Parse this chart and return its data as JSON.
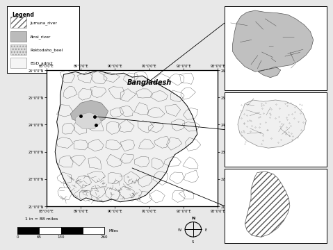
{
  "title": "Bangladesh",
  "legend_title": "Legend",
  "legend_items": [
    {
      "label": "Jumuna_river",
      "hatch": "////",
      "facecolor": "#ffffff",
      "edgecolor": "#666666"
    },
    {
      "label": "Atrai_river",
      "hatch": "",
      "facecolor": "#bbbbbb",
      "edgecolor": "#666666"
    },
    {
      "label": "Roktodaho_beel",
      "hatch": "....",
      "facecolor": "#dddddd",
      "edgecolor": "#999999"
    },
    {
      "label": "BGD_adm2",
      "hatch": "",
      "facecolor": "#f5f5f5",
      "edgecolor": "#888888"
    }
  ],
  "scale_text": "1 in = 88 miles",
  "scale_labels": [
    "0",
    "65",
    "130",
    "",
    "260 Miles"
  ],
  "compass_labels": [
    "N",
    "S",
    "E",
    "W"
  ],
  "bg_color": "#e8e8e8",
  "main_map_bg": "#ffffff",
  "x_ticks_top": [
    "88°0'0\"E",
    "89°0'0\"E",
    "90°0'0\"E",
    "91°0'0\"E",
    "92°0'0\"E",
    "93°0'0\"E"
  ],
  "x_ticks_bot": [
    "88°0'0\"E",
    "89°0'0\"E",
    "90°0'0\"E",
    "91°0'0\"E",
    "92°0'0\"E",
    "93°0'0\"E"
  ],
  "y_ticks_left": [
    "26°0'0\"N",
    "25°0'0\"N",
    "24°0'0\"N",
    "23°0'0\"N",
    "22°0'0\"N",
    "21°0'0\"N"
  ],
  "y_ticks_right": [
    "26°0'0\"N",
    "25°0'0\"N",
    "24°0'0\"N",
    "23°0'0\"N",
    "22°0'0\"N",
    "21°0'0\"N"
  ]
}
